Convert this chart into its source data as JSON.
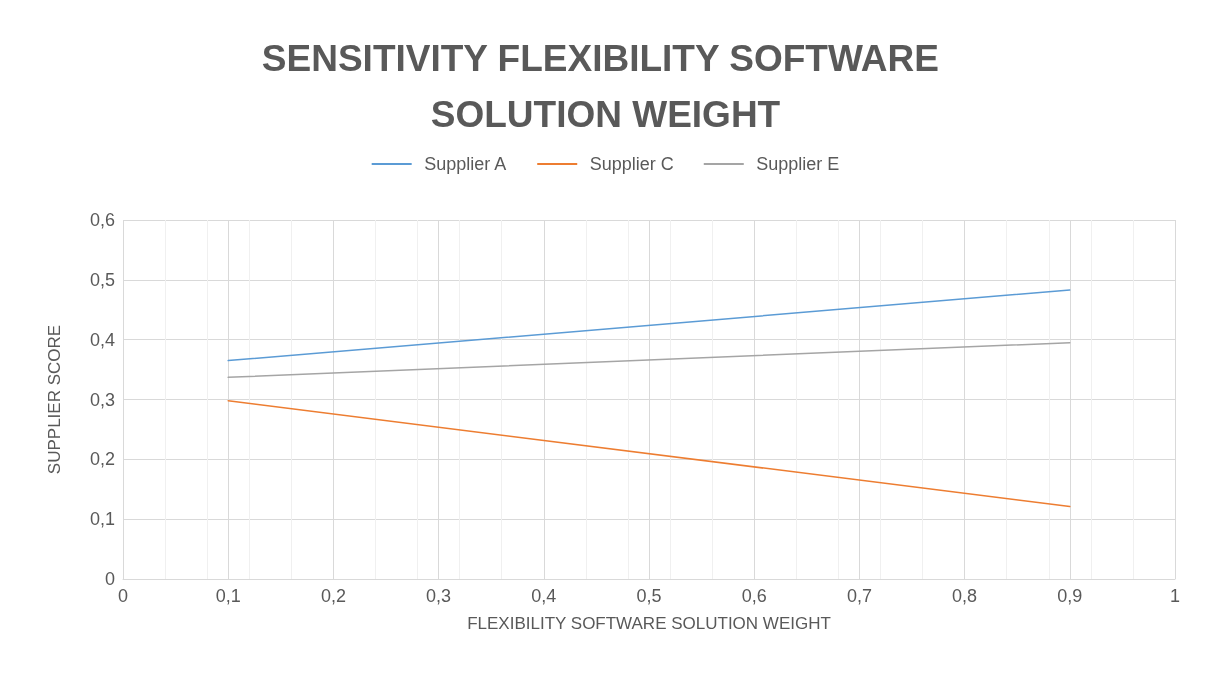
{
  "chart_data": {
    "type": "line",
    "title": "SENSITIVITY FLEXIBILITY SOFTWARE SOLUTION WEIGHT",
    "xlabel": "FLEXIBILITY SOFTWARE SOLUTION WEIGHT",
    "ylabel": "SUPPLIER SCORE",
    "x": [
      0.1,
      0.9
    ],
    "series": [
      {
        "name": "Supplier A",
        "color": "#5b9bd5",
        "values": [
          0.365,
          0.483
        ]
      },
      {
        "name": "Supplier C",
        "color": "#ed7d31",
        "values": [
          0.298,
          0.121
        ]
      },
      {
        "name": "Supplier E",
        "color": "#a5a5a5",
        "values": [
          0.337,
          0.395
        ]
      }
    ],
    "xlim": [
      0,
      1
    ],
    "xticks": [
      0,
      {
        "value": 0.1,
        "label": "0,1"
      },
      {
        "value": 0.2,
        "label": "0,2"
      },
      {
        "value": 0.3,
        "label": "0,3"
      },
      {
        "value": 0.4,
        "label": "0,4"
      },
      {
        "value": 0.5,
        "label": "0,5"
      },
      {
        "value": 0.6,
        "label": "0,6"
      },
      {
        "value": 0.7,
        "label": "0,7"
      },
      {
        "value": 0.8,
        "label": "0,8"
      },
      {
        "value": 0.9,
        "label": "0,9"
      },
      1
    ],
    "ylim": [
      0,
      0.6
    ],
    "yticks": [
      0,
      {
        "value": 0.1,
        "label": "0,1"
      },
      {
        "value": 0.2,
        "label": "0,2"
      },
      {
        "value": 0.3,
        "label": "0,3"
      },
      {
        "value": 0.4,
        "label": "0,4"
      },
      {
        "value": 0.5,
        "label": "0,5"
      },
      {
        "value": 0.6,
        "label": "0,6"
      }
    ],
    "grid": true,
    "legend": "top",
    "marker": "none",
    "line_style": "solid"
  }
}
